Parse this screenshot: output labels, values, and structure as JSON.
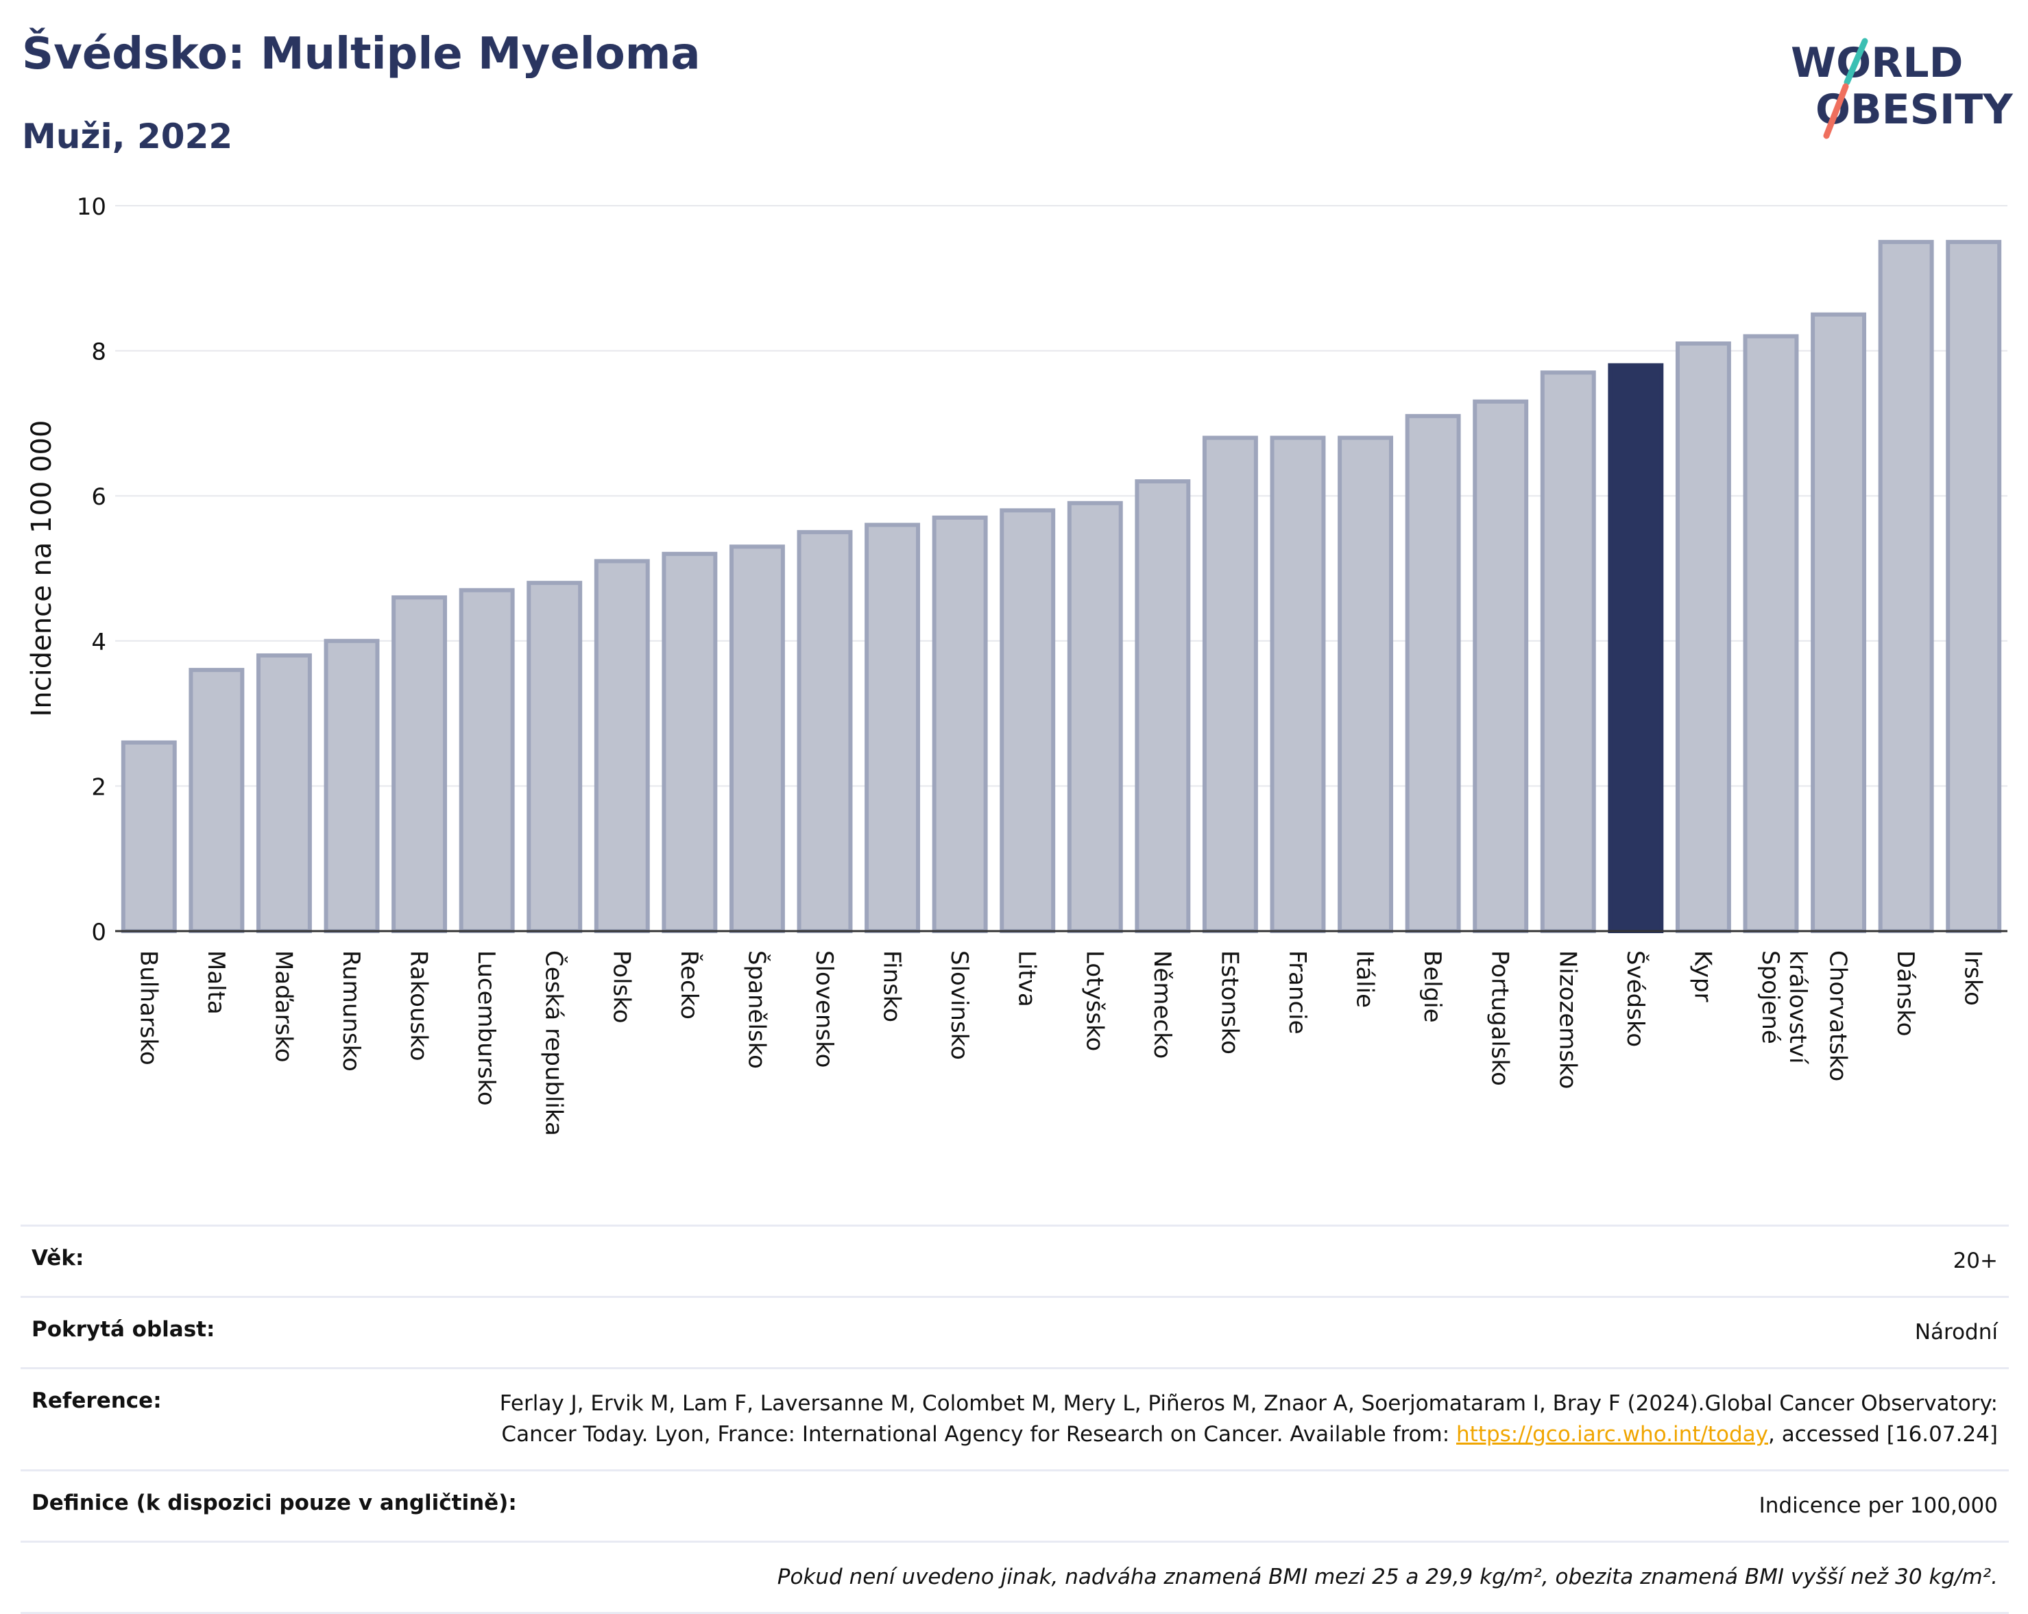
{
  "header": {
    "title": "Švédsko: Multiple Myeloma",
    "subtitle": "Muži, 2022",
    "logo_line1": "WORLD",
    "logo_line2": "OBESITY"
  },
  "chart_data": {
    "type": "bar",
    "ylabel": "Incidence na 100 000",
    "xlabel": "",
    "ylim": [
      0,
      10
    ],
    "yticks": [
      0,
      2,
      4,
      6,
      8,
      10
    ],
    "grid": true,
    "highlight": "Švédsko",
    "categories": [
      "Bulharsko",
      "Malta",
      "Maďarsko",
      "Rumunsko",
      "Rakousko",
      "Lucembursko",
      "Česká republika",
      "Polsko",
      "Řecko",
      "Španělsko",
      "Slovensko",
      "Finsko",
      "Slovinsko",
      "Litva",
      "Lotyšsko",
      "Německo",
      "Estonsko",
      "Francie",
      "Itálie",
      "Belgie",
      "Portugalsko",
      "Nizozemsko",
      "Švédsko",
      "Kypr",
      "Spojené království",
      "Chorvatsko",
      "Dánsko",
      "Irsko"
    ],
    "values": [
      2.6,
      3.6,
      3.8,
      4.0,
      4.6,
      4.7,
      4.8,
      5.1,
      5.2,
      5.3,
      5.5,
      5.6,
      5.7,
      5.8,
      5.9,
      6.2,
      6.8,
      6.8,
      6.8,
      7.1,
      7.3,
      7.7,
      7.8,
      8.1,
      8.2,
      8.5,
      9.5,
      9.5
    ],
    "colors": {
      "bar": "#bec2cf",
      "bar_border": "#9ea5bc",
      "highlight": "#2a3560",
      "grid": "#e6e7ec",
      "axis": "#333333"
    }
  },
  "meta": {
    "age_label": "Věk:",
    "age_value": "20+",
    "area_label": "Pokrytá oblast:",
    "area_value": "Národní",
    "ref_label": "Reference:",
    "ref_text_1": "Ferlay J, Ervik M, Lam F, Laversanne M, Colombet M, Mery L, Piñeros M, Znaor A, Soerjomataram I, Bray F (2024).Global Cancer Observatory: Cancer Today. Lyon, France: International Agency for Research on Cancer. Available from: ",
    "ref_link": "https://gco.iarc.who.int/today",
    "ref_text_2": ", accessed [16.07.24]",
    "def_label": "Definice (k dispozici pouze v angličtině):",
    "def_value": "Indicence per 100,000",
    "note": "Pokud není uvedeno jinak, nadváha znamená BMI mezi 25 a 29,9 kg/m², obezita znamená BMI vyšší než 30 kg/m²."
  }
}
